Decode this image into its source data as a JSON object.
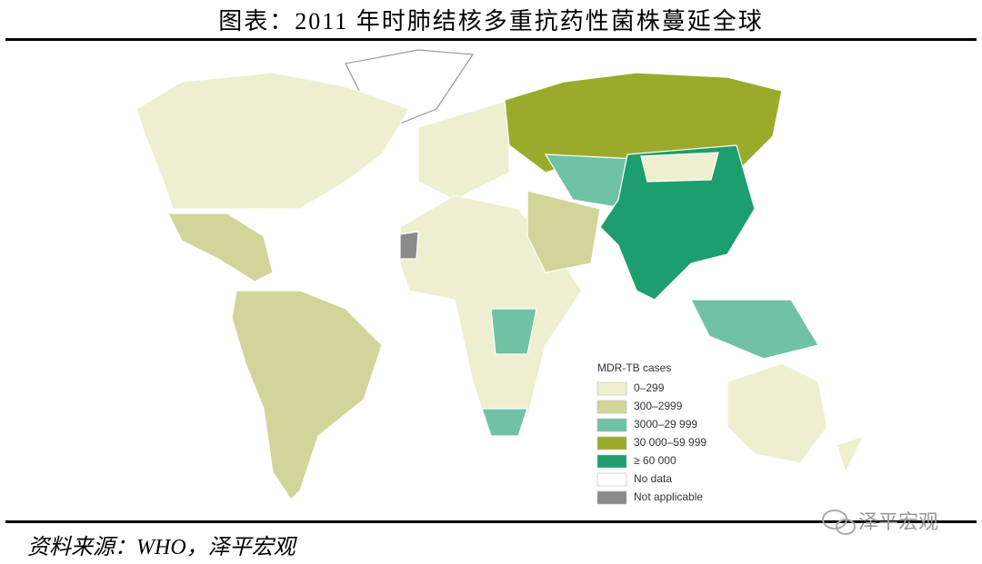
{
  "header": {
    "title": "图表：2011 年时肺结核多重抗药性菌株蔓延全球"
  },
  "legend": {
    "title": "MDR-TB cases",
    "items": [
      {
        "label": "0–299",
        "color": "#eeefd0"
      },
      {
        "label": "300–2999",
        "color": "#d2d49a"
      },
      {
        "label": "3000–29 999",
        "color": "#6fc2a4"
      },
      {
        "label": "30 000–59 999",
        "color": "#9aab2c"
      },
      {
        "label": "≥ 60 000",
        "color": "#1c9e6e"
      },
      {
        "label": "No data",
        "color": "#ffffff"
      },
      {
        "label": "Not applicable",
        "color": "#8a8a8a"
      }
    ]
  },
  "source": "资料来源：WHO，泽平宏观",
  "watermark": "泽平宏观"
}
